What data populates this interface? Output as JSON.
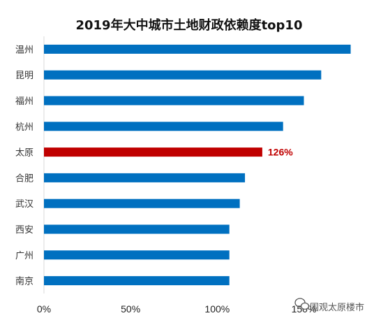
{
  "chart_data": {
    "type": "bar",
    "orientation": "horizontal",
    "title": "2019年大中城市土地财政依赖度top10",
    "categories": [
      "温州",
      "昆明",
      "福州",
      "杭州",
      "太原",
      "合肥",
      "武汉",
      "西安",
      "广州",
      "南京"
    ],
    "values": [
      177,
      160,
      150,
      138,
      126,
      116,
      113,
      107,
      107,
      107
    ],
    "highlight": {
      "category": "太原",
      "color": "#c00000",
      "label": "126%"
    },
    "bar_color": "#0070c0",
    "x_ticks": [
      "0%",
      "50%",
      "100%",
      "150%"
    ],
    "xlim": [
      0,
      180
    ],
    "ylabel": "",
    "xlabel": "",
    "grid": false
  },
  "watermark": {
    "text": "围观太原楼市"
  }
}
